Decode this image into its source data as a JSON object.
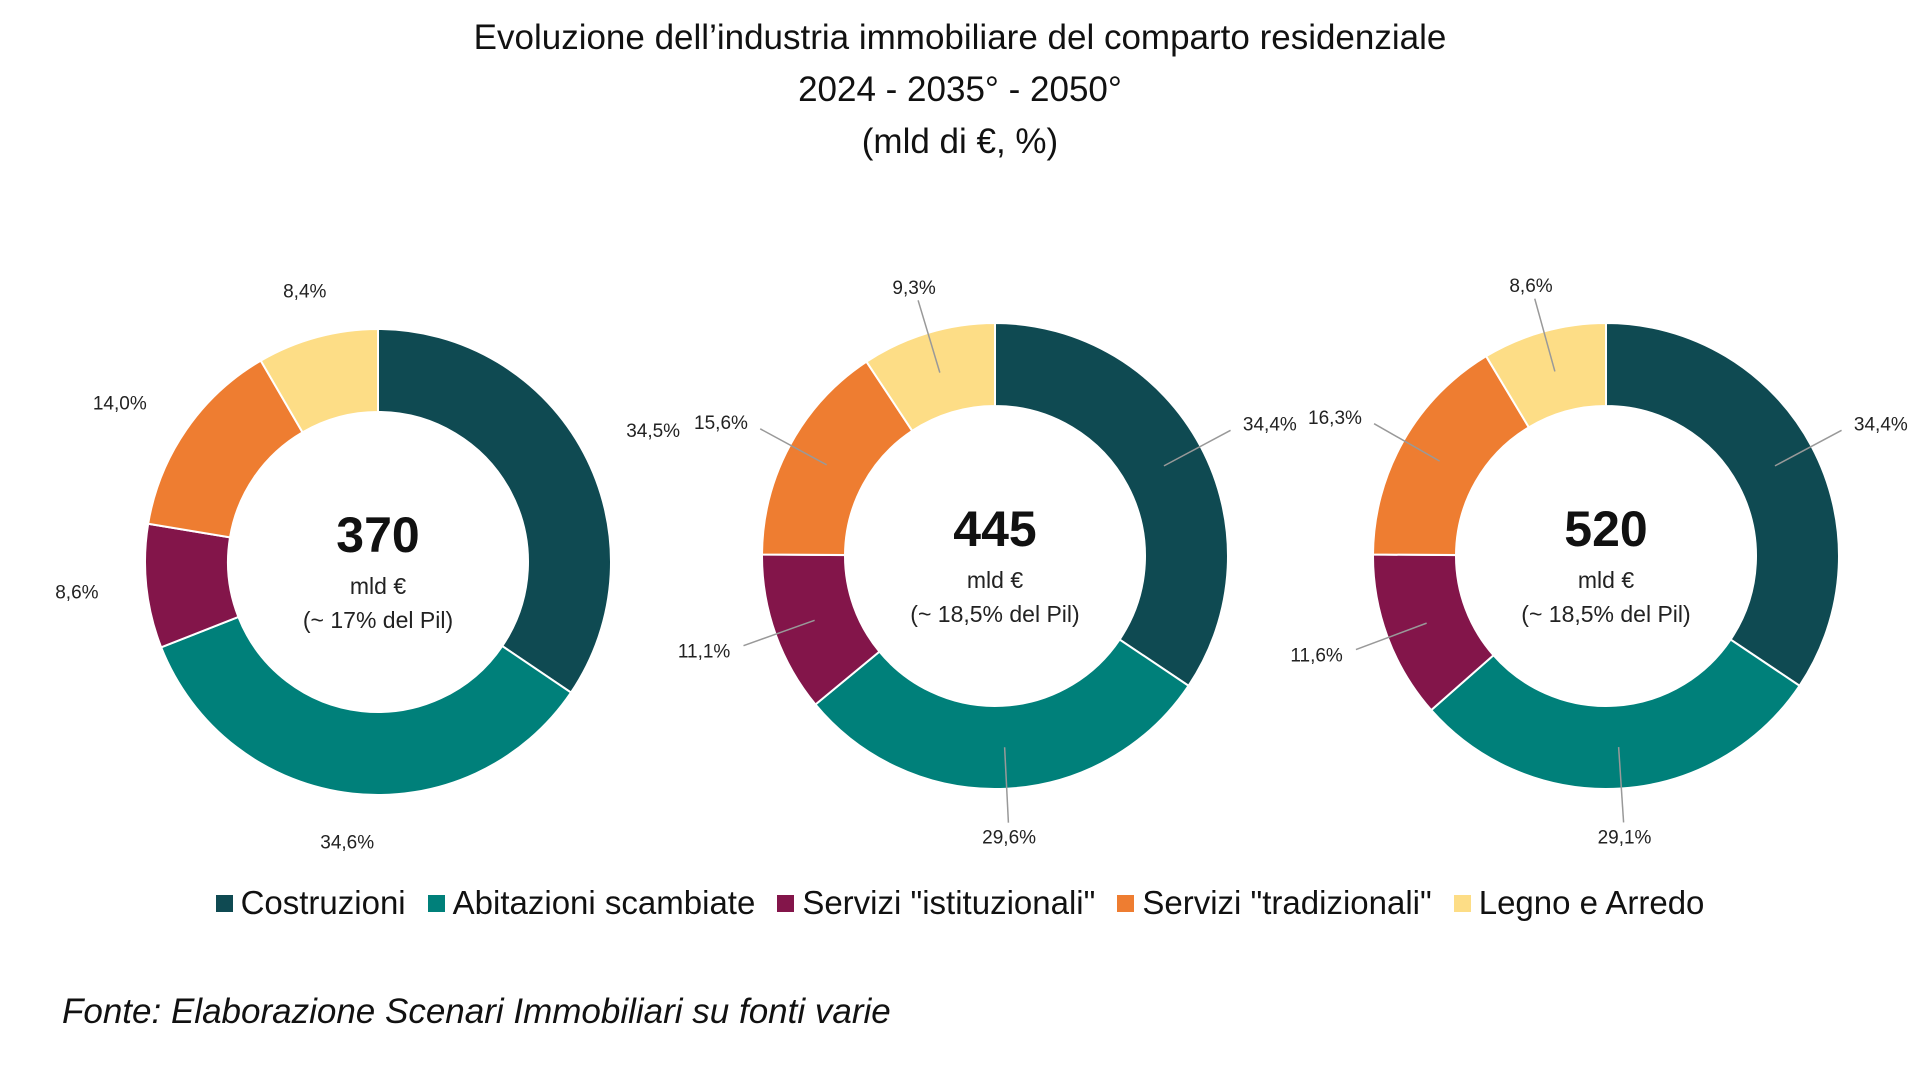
{
  "chart_data": {
    "type": "donut",
    "title": "Evoluzione dell’industria immobiliare del comparto residenziale",
    "subtitle": "2024 - 2035° - 2050°",
    "units": "(mld di €, %)",
    "categories": [
      "Costruzioni",
      "Abitazioni scambiate",
      "Servizi \"istituzionali\"",
      "Servizi \"tradizionali\"",
      "Legno e Arredo"
    ],
    "colors": [
      "#0f4a52",
      "#00807a",
      "#83154a",
      "#ee7d31",
      "#fddd86"
    ],
    "legend_position": "bottom",
    "charts": [
      {
        "total": "370",
        "unit": "mld €",
        "note": "(~ 17% del Pil)",
        "values": [
          34.5,
          34.6,
          8.6,
          14.0,
          8.4
        ],
        "labels": [
          "34,5%",
          "34,6%",
          "8,6%",
          "14,0%",
          "8,4%"
        ],
        "leader_lines": false
      },
      {
        "total": "445",
        "unit": "mld €",
        "note": "(~ 18,5% del Pil)",
        "values": [
          34.4,
          29.6,
          11.1,
          15.6,
          9.3
        ],
        "labels": [
          "34,4%",
          "29,6%",
          "11,1%",
          "15,6%",
          "9,3%"
        ],
        "leader_lines": true
      },
      {
        "total": "520",
        "unit": "mld €",
        "note": "(~ 18,5% del Pil)",
        "values": [
          34.4,
          29.1,
          11.6,
          16.3,
          8.6
        ],
        "labels": [
          "34,4%",
          "29,1%",
          "11,6%",
          "16,3%",
          "8,6%"
        ],
        "leader_lines": true
      }
    ]
  },
  "source": "Fonte: Elaborazione Scenari Immobiliari su fonti varie"
}
